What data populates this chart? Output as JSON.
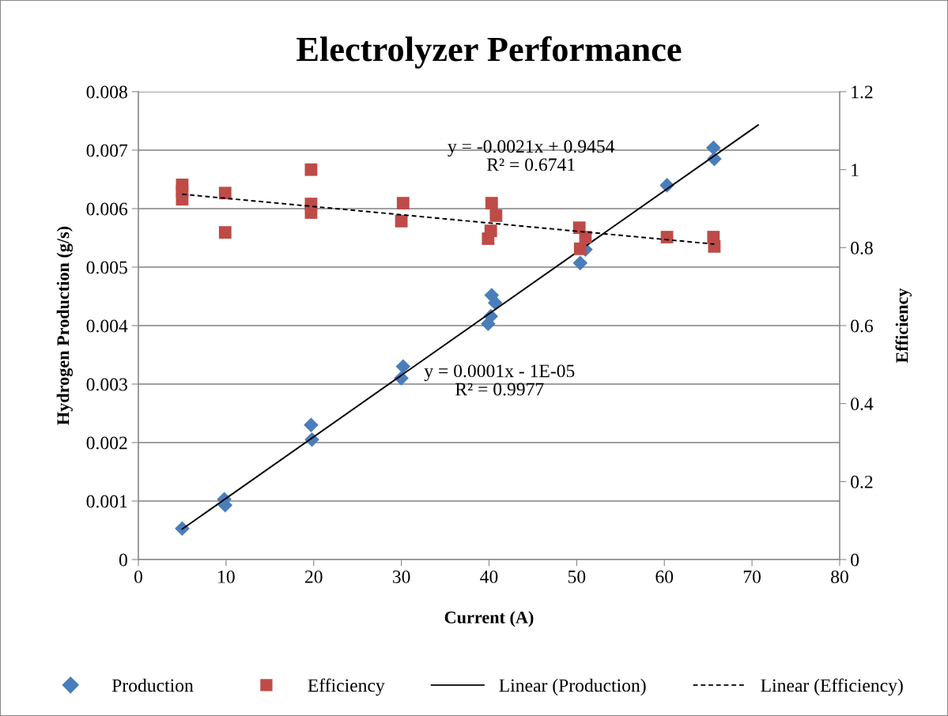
{
  "chart_data": {
    "type": "scatter",
    "title": "Electrolyzer Performance",
    "xlabel": "Current (A)",
    "ylabel": "Hydrogen Production (g/s)",
    "y2label": "Efficiency",
    "xlim": [
      0,
      80
    ],
    "xticks": [
      0,
      10,
      20,
      30,
      40,
      50,
      60,
      70,
      80
    ],
    "ylim": [
      0,
      0.008
    ],
    "yticks": [
      0,
      0.001,
      0.002,
      0.003,
      0.004,
      0.005,
      0.006,
      0.007,
      0.008
    ],
    "y2lim": [
      0,
      1.2
    ],
    "y2ticks": [
      0,
      0.2,
      0.4,
      0.6,
      0.8,
      1,
      1.2
    ],
    "grid": "y",
    "legend": "bottom",
    "annotations": [
      "y = -0.0021x + 0.9454\nR² = 0.6741",
      "y = 0.0001x - 1E-05\nR² = 0.9977"
    ],
    "series": [
      {
        "name": "Production",
        "marker": "diamond",
        "color": "#4a7ebb",
        "x": [
          5,
          9.8,
          9.9,
          19.7,
          19.8,
          30,
          30.2,
          39.9,
          40.2,
          40.3,
          40.7,
          50.4,
          51,
          60.3,
          65.6,
          65.7
        ],
        "values": [
          0.00053,
          0.00103,
          0.00093,
          0.0023,
          0.00205,
          0.0031,
          0.0033,
          0.00403,
          0.00416,
          0.00452,
          0.00439,
          0.00507,
          0.0053,
          0.0064,
          0.00704,
          0.00685
        ]
      },
      {
        "name": "Efficiency",
        "marker": "square",
        "axis": "y2",
        "color": "#be4b48",
        "x": [
          5,
          5,
          5,
          9.9,
          9.9,
          19.7,
          19.7,
          19.7,
          30,
          30.2,
          39.9,
          40.2,
          40.3,
          40.8,
          50.3,
          50.4,
          51,
          60.3,
          65.6,
          65.7
        ],
        "values": [
          0.961,
          0.945,
          0.924,
          0.94,
          0.839,
          1.0,
          0.912,
          0.89,
          0.868,
          0.914,
          0.823,
          0.843,
          0.914,
          0.882,
          0.851,
          0.797,
          0.827,
          0.827,
          0.827,
          0.803
        ]
      },
      {
        "name": "Linear (Production)",
        "type": "line",
        "line_style": "solid",
        "marker": "none",
        "color": "#000000",
        "x": [
          5,
          70.7
        ],
        "values": [
          0.00052,
          0.00743
        ]
      },
      {
        "name": "Linear (Efficiency)",
        "type": "line",
        "line_style": "dashed",
        "marker": "none",
        "axis": "y2",
        "color": "#000000",
        "x": [
          5,
          65.7
        ],
        "values": [
          0.937,
          0.809
        ]
      }
    ]
  }
}
